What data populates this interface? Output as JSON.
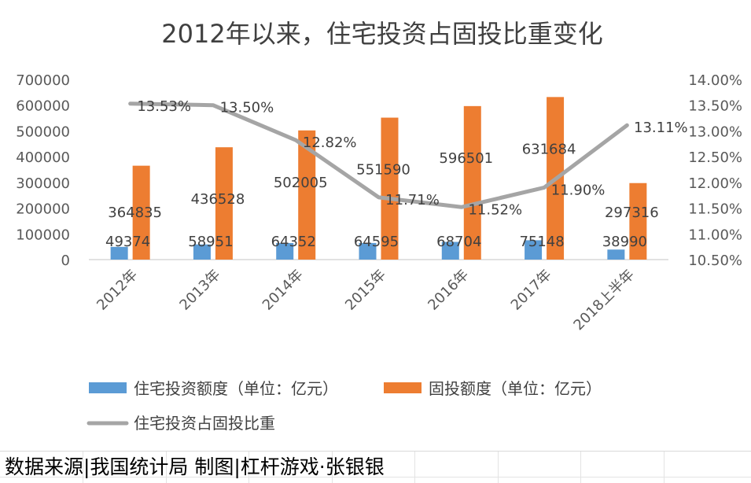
{
  "chart_data": {
    "type": "bar+line",
    "title": "2012年以来，住宅投资占固投比重变化",
    "categories": [
      "2012年",
      "2013年",
      "2014年",
      "2015年",
      "2016年",
      "2017年",
      "2018上半年"
    ],
    "series": [
      {
        "name": "住宅投资额度（单位：亿元）",
        "type": "bar",
        "axis": "left",
        "color": "#5b9bd5",
        "values": [
          49374,
          58951,
          64352,
          64595,
          68704,
          75148,
          38990
        ]
      },
      {
        "name": "固投额度（单位：亿元）",
        "type": "bar",
        "axis": "left",
        "color": "#ed7d31",
        "values": [
          364835,
          436528,
          502005,
          551590,
          596501,
          631684,
          297316
        ]
      },
      {
        "name": "住宅投资占固投比重",
        "type": "line",
        "axis": "right",
        "color": "#a5a5a5",
        "values": [
          13.53,
          13.5,
          12.82,
          11.71,
          11.52,
          11.9,
          13.11
        ],
        "labels": [
          "13.53%",
          "13.50%",
          "12.82%",
          "11.71%",
          "11.52%",
          "11.90%",
          "13.11%"
        ]
      }
    ],
    "y_left": {
      "ylim": [
        0,
        700000
      ],
      "ticks": [
        0,
        100000,
        200000,
        300000,
        400000,
        500000,
        600000,
        700000
      ],
      "tick_labels": [
        "0",
        "100000",
        "200000",
        "300000",
        "400000",
        "500000",
        "600000",
        "700000"
      ]
    },
    "y_right": {
      "ylim": [
        10.5,
        14.0
      ],
      "ticks": [
        10.5,
        11.0,
        11.5,
        12.0,
        12.5,
        13.0,
        13.5,
        14.0
      ],
      "tick_labels": [
        "10.50%",
        "11.00%",
        "11.50%",
        "12.00%",
        "12.50%",
        "13.00%",
        "13.50%",
        "14.00%"
      ]
    },
    "grid": false,
    "legend_position": "bottom"
  },
  "footer": {
    "text": "数据来源|我国统计局  制图|杠杆游戏·张银银"
  }
}
